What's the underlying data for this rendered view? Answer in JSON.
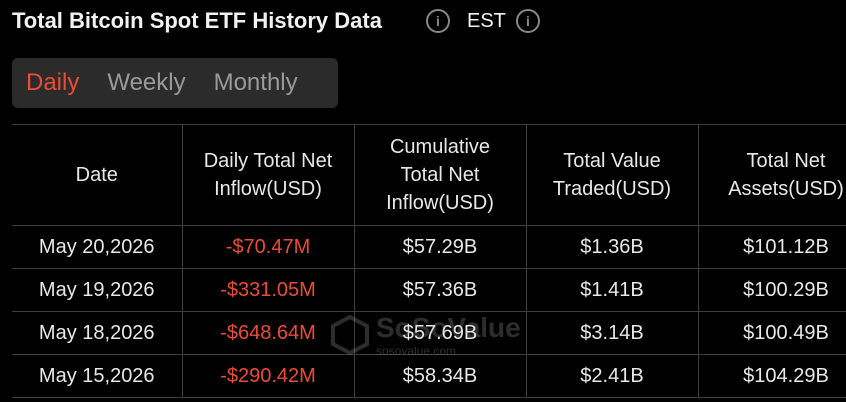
{
  "header": {
    "title": "Total Bitcoin Spot ETF History Data",
    "timezone": "EST"
  },
  "tabs": [
    "Daily",
    "Weekly",
    "Monthly"
  ],
  "watermark": {
    "brand": "SoSoValue",
    "site": "sosovalue.com"
  },
  "table": {
    "columns": [
      [
        "Date"
      ],
      [
        "Daily Total Net",
        "Inflow(USD)"
      ],
      [
        "Cumulative",
        "Total Net",
        "Inflow(USD)"
      ],
      [
        "Total Value",
        "Traded(USD)"
      ],
      [
        "Total Net",
        "Assets(USD)"
      ]
    ],
    "rows": [
      [
        "May 20,2026",
        "-$70.47M",
        "$57.29B",
        "$1.36B",
        "$101.12B"
      ],
      [
        "May 19,2026",
        "-$331.05M",
        "$57.36B",
        "$1.41B",
        "$100.29B"
      ],
      [
        "May 18,2026",
        "-$648.64M",
        "$57.69B",
        "$3.14B",
        "$100.49B"
      ],
      [
        "May 15,2026",
        "-$290.42M",
        "$58.34B",
        "$2.41B",
        "$104.29B"
      ]
    ]
  }
}
